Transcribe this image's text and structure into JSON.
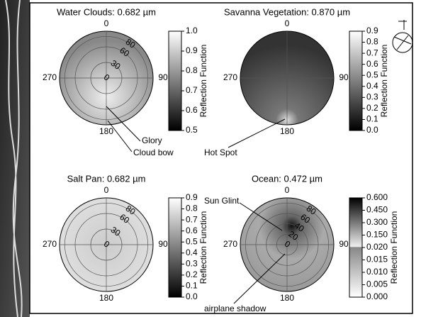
{
  "chart_data": [
    {
      "type": "polar-image",
      "title": "Water Clouds: 0.682 µm",
      "theta_ticks": [
        0,
        90,
        180,
        270
      ],
      "rlim": [
        0,
        90
      ],
      "rticks": [
        0,
        30,
        60,
        80
      ],
      "colorbar": {
        "label": "Reflection Function",
        "lim": [
          0.5,
          1.0
        ],
        "ticks": [
          0.5,
          0.6,
          0.7,
          0.8,
          0.9,
          {
            "value": 1,
            "label": "1.0"
          }
        ]
      },
      "annotations": [
        "Glory",
        "Cloud bow"
      ]
    },
    {
      "type": "polar-image",
      "title": "Savanna Vegetation: 0.870 µm",
      "theta_ticks": [
        0,
        90,
        180,
        270
      ],
      "rlim": [
        0,
        90
      ],
      "rticks": [],
      "colorbar": {
        "label": "Reflection Function",
        "lim": [
          0,
          0.9
        ],
        "ticks": [
          {
            "value": 0,
            "label": "0.0"
          },
          0.1,
          0.2,
          0.3,
          0.4,
          0.5,
          0.6,
          0.7,
          0.8,
          0.9
        ]
      },
      "annotations": [
        "Hot Spot"
      ]
    },
    {
      "type": "polar-image",
      "title": "Salt Pan: 0.682 µm",
      "theta_ticks": [
        0,
        90,
        180,
        270
      ],
      "rlim": [
        0,
        90
      ],
      "rticks": [
        0,
        30,
        60,
        80
      ],
      "colorbar": {
        "label": "Reflection Function",
        "lim": [
          0,
          0.9
        ],
        "ticks": [
          {
            "value": 0,
            "label": "0.0"
          },
          0.1,
          0.2,
          0.3,
          0.4,
          0.5,
          0.6,
          0.7,
          0.8,
          0.9
        ]
      },
      "annotations": []
    },
    {
      "type": "polar-image",
      "title": "Ocean: 0.472 µm",
      "theta_ticks": [
        0,
        90,
        180,
        270
      ],
      "rlim": [
        0,
        90
      ],
      "rticks": [
        0,
        20,
        40,
        60,
        80
      ],
      "colorbar": {
        "label": "Reflection Function",
        "lim": [
          0,
          0.6
        ],
        "scale": "piecewise",
        "ticks": [
          {
            "value": 0,
            "label": "0.000"
          },
          {
            "value": 0.005,
            "label": "0.005"
          },
          {
            "value": 0.01,
            "label": "0.010"
          },
          {
            "value": 0.015,
            "label": "0.015"
          },
          {
            "value": 0.02,
            "label": "0.020"
          },
          {
            "value": 0.15,
            "label": "0.150"
          },
          {
            "value": 0.3,
            "label": "0.300"
          },
          {
            "value": 0.45,
            "label": "0.450"
          },
          {
            "value": 0.6,
            "label": "0.600"
          }
        ]
      },
      "annotations": [
        "Sun Glint",
        "airplane shadow"
      ]
    }
  ]
}
